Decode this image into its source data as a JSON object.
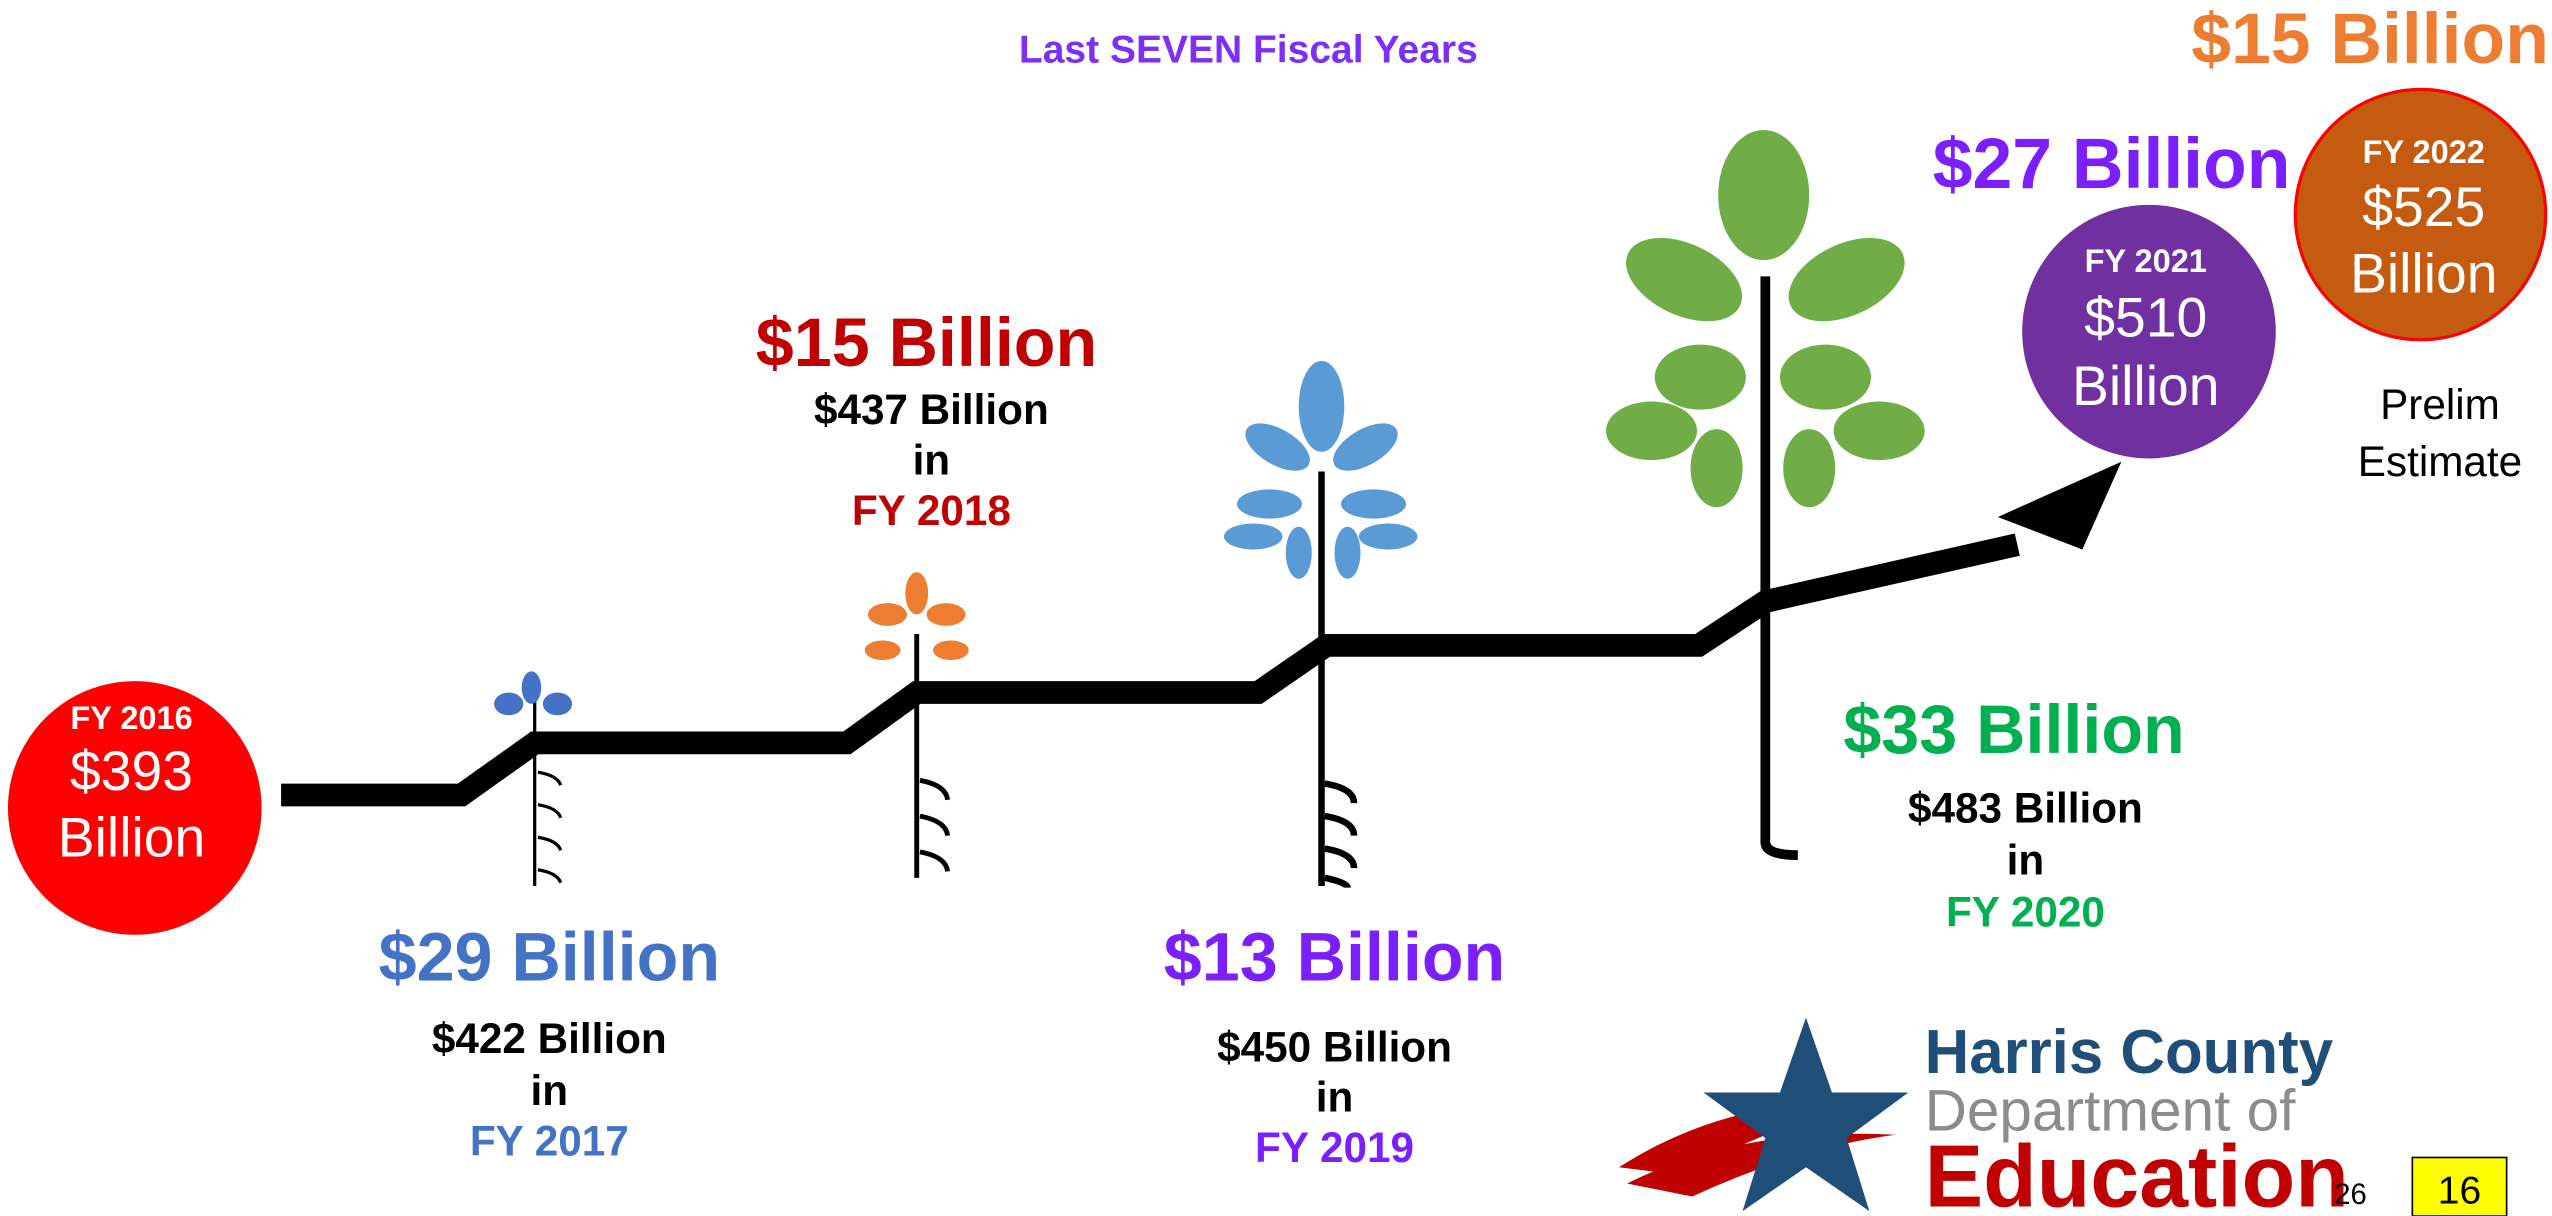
{
  "subtitle": "Last SEVEN  Fiscal Years",
  "bubbles": [
    {
      "fy": "FY 2016",
      "amount": "$393",
      "unit": "Billion"
    },
    {
      "fy": "FY 2021",
      "amount": "$510",
      "unit": "Billion"
    },
    {
      "fy": "FY 2022",
      "amount": "$525",
      "unit": "Billion"
    }
  ],
  "increases": [
    {
      "amount": "$29 Billion",
      "total": "$422 Billion",
      "in": "in",
      "fy": "FY 2017"
    },
    {
      "amount": "$15 Billion",
      "total": "$437 Billion",
      "in": "in",
      "fy": "FY 2018"
    },
    {
      "amount": "$13 Billion",
      "total": "$450 Billion",
      "in": "in",
      "fy": "FY 2019"
    },
    {
      "amount": "$33 Billion",
      "total": "$483 Billion",
      "in": "in",
      "fy": "FY 2020"
    },
    {
      "amount": "$27 Billion"
    },
    {
      "amount": "$15 Billion"
    }
  ],
  "note": [
    "Prelim",
    "Estimate"
  ],
  "logo": {
    "line1": "Harris County",
    "line2": "Department of",
    "line3": "Education"
  },
  "page_number": "26",
  "slide_badge": "16"
}
